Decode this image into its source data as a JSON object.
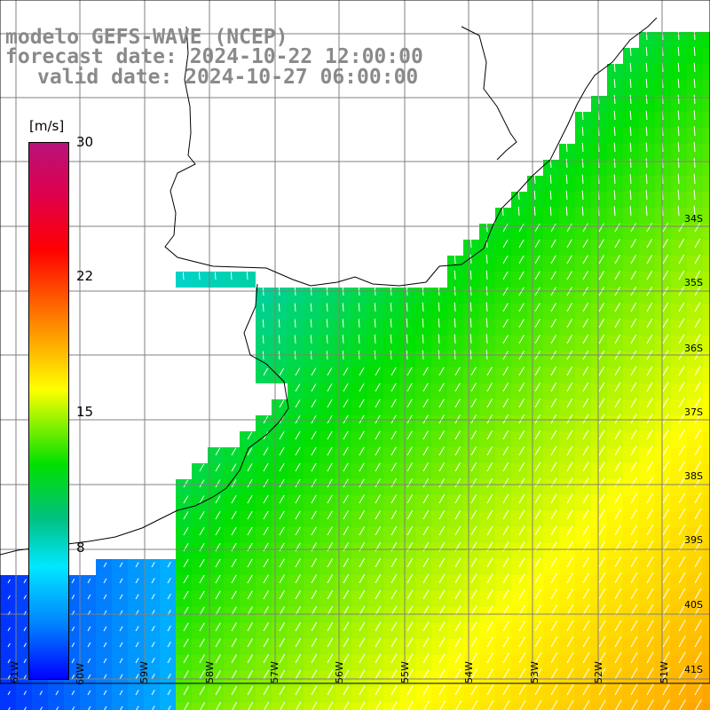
{
  "title": {
    "line1": "modelo GEFS-WAVE (NCEP)",
    "line2": "forecast date: 2024-10-22 12:00:00",
    "line3": "valid date: 2024-10-27 06:00:00"
  },
  "colorbar": {
    "units": "[m/s]",
    "ticks": [
      "30",
      "22",
      "15",
      "8"
    ],
    "colors": [
      "#0000ff",
      "#0080ff",
      "#00e8ff",
      "#00c080",
      "#00e000",
      "#80f000",
      "#ffff00",
      "#ff8000",
      "#ff0000",
      "#b8127a"
    ]
  },
  "lat_labels": [
    "34S",
    "35S",
    "36S",
    "37S",
    "38S",
    "39S",
    "40S",
    "41S"
  ],
  "lon_labels": [
    "61W",
    "60W",
    "59W",
    "58W",
    "57W",
    "56W",
    "55W",
    "54W",
    "53W",
    "52W",
    "51W"
  ],
  "colors": {
    "land": "#ffffff",
    "coast": "#000000",
    "grid": "#808080",
    "title": "#8a8a8a",
    "arrow": "#ffffff"
  }
}
